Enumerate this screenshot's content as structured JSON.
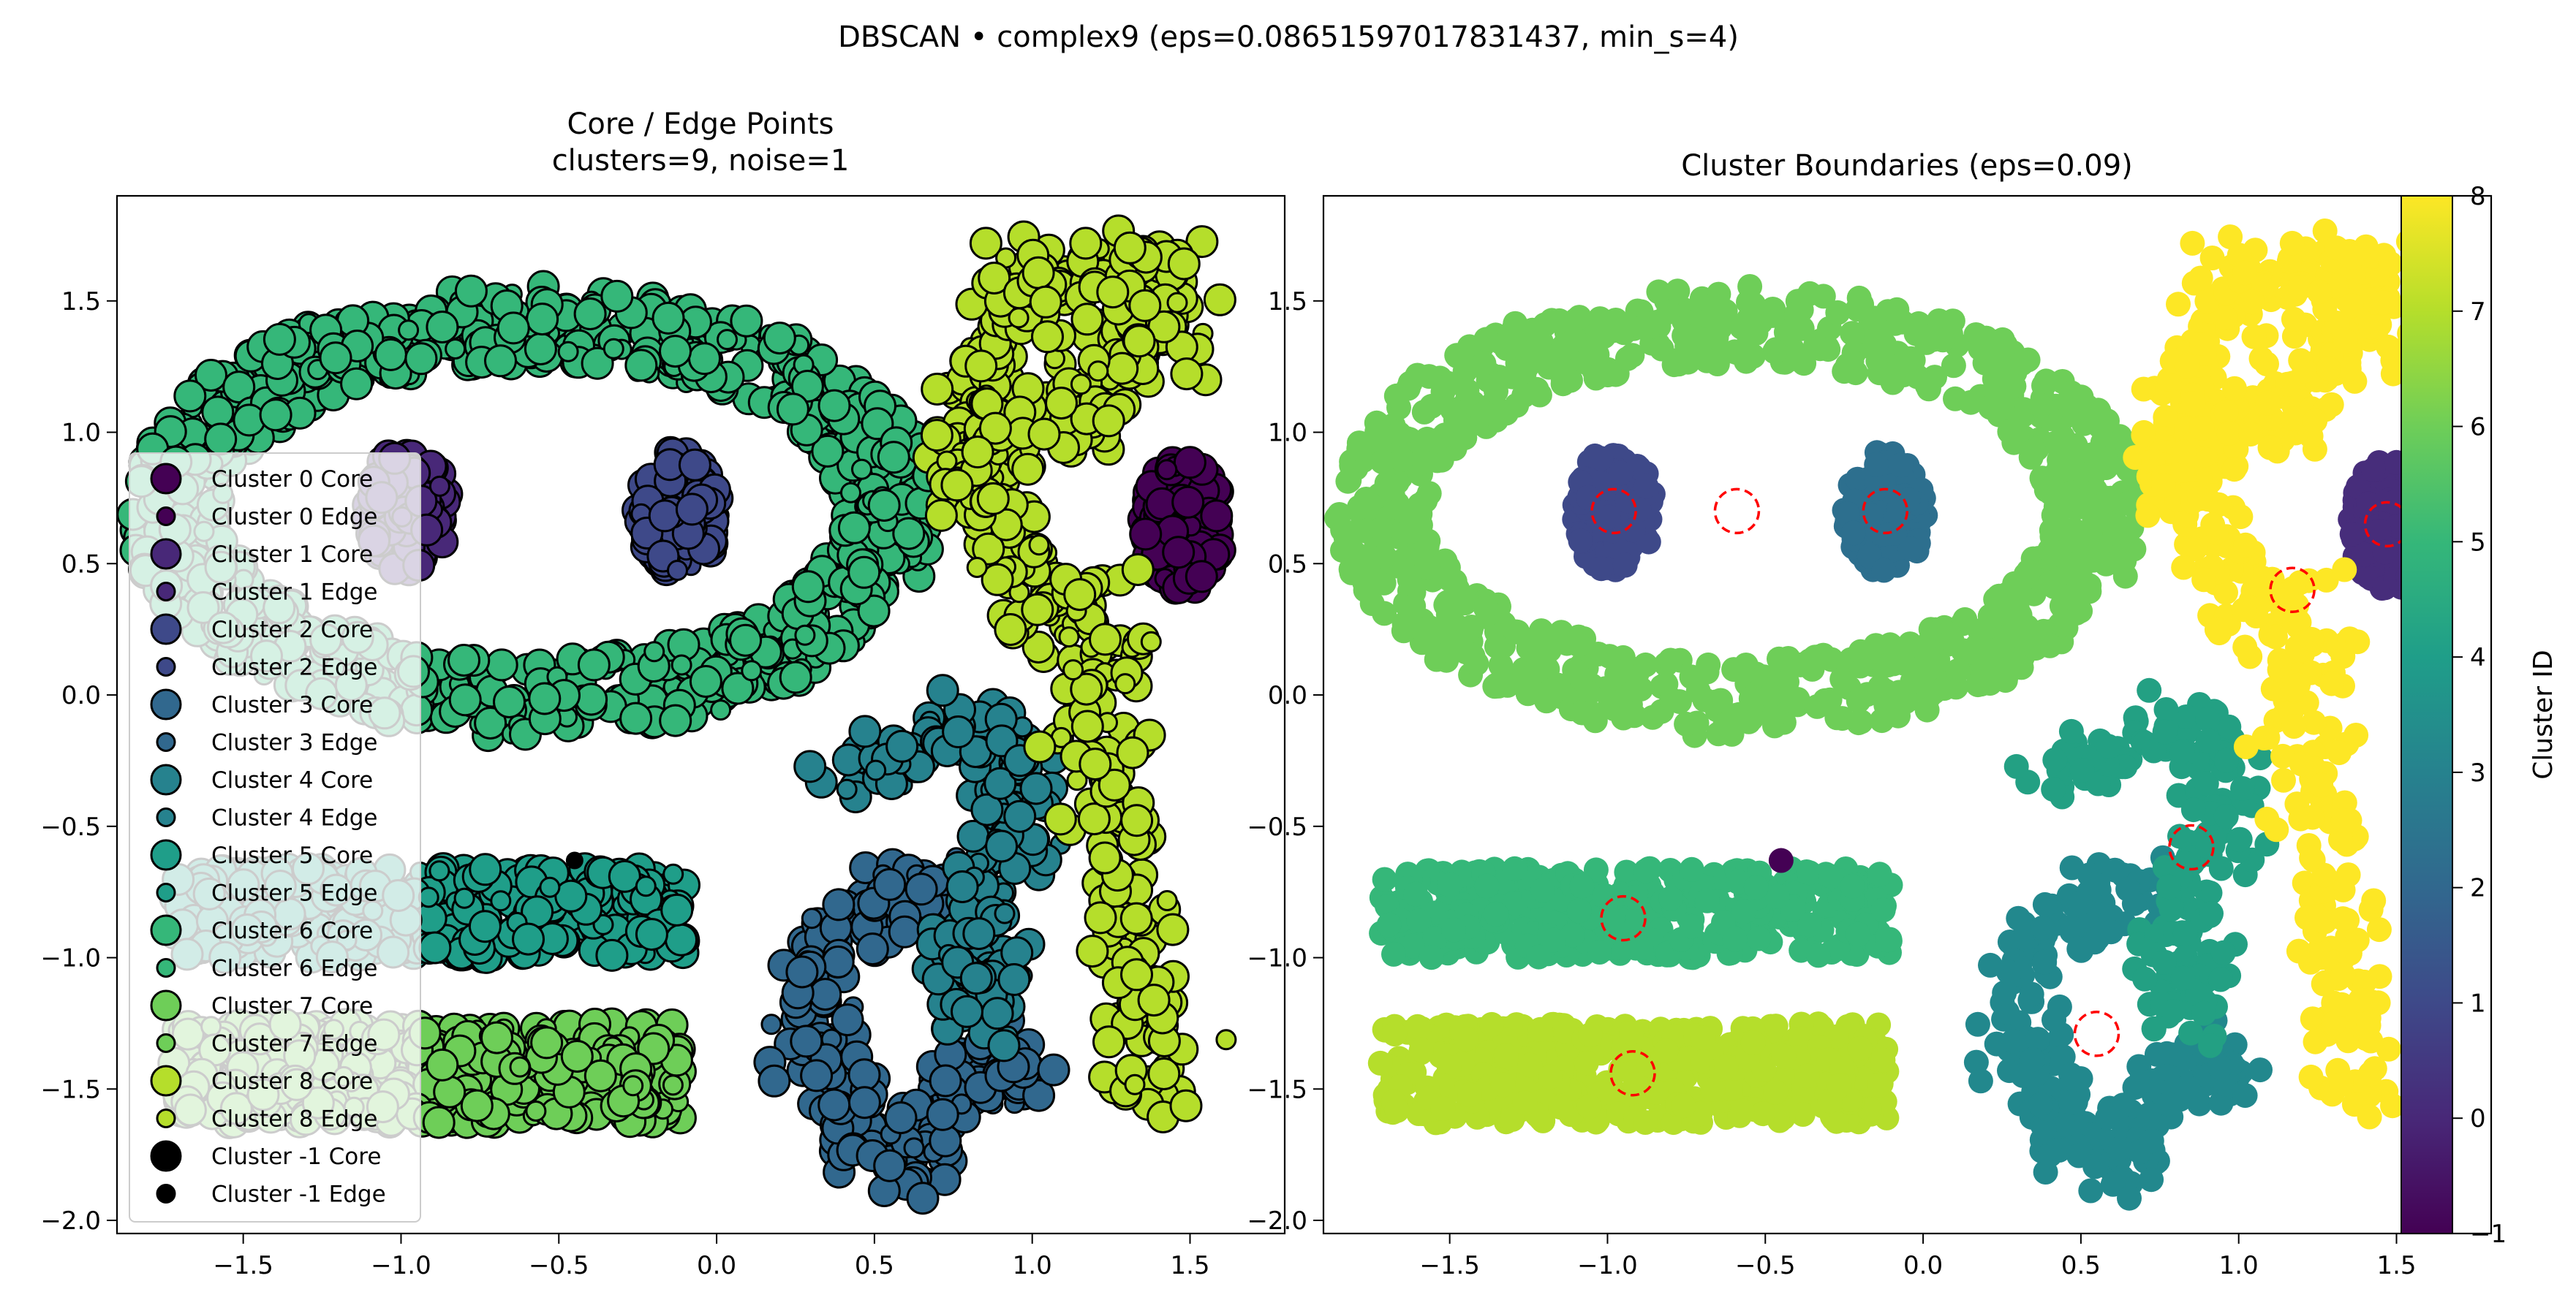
{
  "figure": {
    "suptitle": "DBSCAN • complex9  (eps=0.08651597017831437, min_s=4)"
  },
  "colors": {
    "viridis": [
      "#440154",
      "#482878",
      "#3e4989",
      "#31688e",
      "#26828e",
      "#1f9e89",
      "#35b779",
      "#6ece58",
      "#b5de2b",
      "#fde725"
    ],
    "noise": "#000000",
    "eps_circle": "#ff0000"
  },
  "chart_data": [
    {
      "type": "scatter",
      "title_line1": "Core / Edge Points",
      "title_line2": "clusters=9, noise=1",
      "xlim": [
        -1.9,
        1.8
      ],
      "ylim": [
        -2.05,
        1.9
      ],
      "xticks": [
        -1.5,
        -1.0,
        -0.5,
        0.0,
        0.5,
        1.0,
        1.5
      ],
      "xtick_labels": [
        "−1.5",
        "−1.0",
        "−0.5",
        "0.0",
        "0.5",
        "1.0",
        "1.5"
      ],
      "yticks": [
        -2.0,
        -1.5,
        -1.0,
        -0.5,
        0.0,
        0.5,
        1.0,
        1.5
      ],
      "ytick_labels": [
        "−2.0",
        "−1.5",
        "−1.0",
        "−0.5",
        "0.0",
        "0.5",
        "1.0",
        "1.5"
      ],
      "legend_position": "left",
      "legend": [
        {
          "label": "Cluster 0 Core",
          "cluster": 0,
          "kind": "core"
        },
        {
          "label": "Cluster 0 Edge",
          "cluster": 0,
          "kind": "edge"
        },
        {
          "label": "Cluster 1 Core",
          "cluster": 1,
          "kind": "core"
        },
        {
          "label": "Cluster 1 Edge",
          "cluster": 1,
          "kind": "edge"
        },
        {
          "label": "Cluster 2 Core",
          "cluster": 2,
          "kind": "core"
        },
        {
          "label": "Cluster 2 Edge",
          "cluster": 2,
          "kind": "edge"
        },
        {
          "label": "Cluster 3 Core",
          "cluster": 3,
          "kind": "core"
        },
        {
          "label": "Cluster 3 Edge",
          "cluster": 3,
          "kind": "edge"
        },
        {
          "label": "Cluster 4 Core",
          "cluster": 4,
          "kind": "core"
        },
        {
          "label": "Cluster 4 Edge",
          "cluster": 4,
          "kind": "edge"
        },
        {
          "label": "Cluster 5 Core",
          "cluster": 5,
          "kind": "core"
        },
        {
          "label": "Cluster 5 Edge",
          "cluster": 5,
          "kind": "edge"
        },
        {
          "label": "Cluster 6 Core",
          "cluster": 6,
          "kind": "core"
        },
        {
          "label": "Cluster 6 Edge",
          "cluster": 6,
          "kind": "edge"
        },
        {
          "label": "Cluster 7 Core",
          "cluster": 7,
          "kind": "core"
        },
        {
          "label": "Cluster 7 Edge",
          "cluster": 7,
          "kind": "edge"
        },
        {
          "label": "Cluster 8 Core",
          "cluster": 8,
          "kind": "core"
        },
        {
          "label": "Cluster 8 Edge",
          "cluster": 8,
          "kind": "edge"
        },
        {
          "label": "Cluster -1 Core",
          "cluster": -1,
          "kind": "core"
        },
        {
          "label": "Cluster -1 Edge",
          "cluster": -1,
          "kind": "edge"
        }
      ]
    },
    {
      "type": "scatter",
      "title": "Cluster Boundaries  (eps=0.09)",
      "xlim": [
        -1.9,
        1.8
      ],
      "ylim": [
        -2.05,
        1.9
      ],
      "xticks": [
        -1.5,
        -1.0,
        -0.5,
        0.0,
        0.5,
        1.0,
        1.5
      ],
      "xtick_labels": [
        "−1.5",
        "−1.0",
        "−0.5",
        "0.0",
        "0.5",
        "1.0",
        "1.5"
      ],
      "yticks": [
        -2.0,
        -1.5,
        -1.0,
        -0.5,
        0.0,
        0.5,
        1.0,
        1.5
      ],
      "ytick_labels": [
        "−2.0",
        "−1.5",
        "−1.0",
        "−0.5",
        "0.0",
        "0.5",
        "1.0",
        "1.5"
      ],
      "centroid_markers": [
        {
          "x": -0.98,
          "y": 0.7
        },
        {
          "x": -0.59,
          "y": 0.7
        },
        {
          "x": -0.12,
          "y": 0.7
        },
        {
          "x": 1.47,
          "y": 0.65
        },
        {
          "x": 1.17,
          "y": 0.4
        },
        {
          "x": 0.85,
          "y": -0.58
        },
        {
          "x": -0.95,
          "y": -0.85
        },
        {
          "x": 0.55,
          "y": -1.29
        },
        {
          "x": -0.92,
          "y": -1.44
        }
      ],
      "noise_point": {
        "x": -0.45,
        "y": -0.63
      }
    }
  ],
  "colorbar": {
    "label": "Cluster ID",
    "range": [
      -1,
      8
    ],
    "ticks": [
      -1,
      0,
      1,
      2,
      3,
      4,
      5,
      6,
      7,
      8
    ],
    "tick_labels": [
      "−1",
      "0",
      "1",
      "2",
      "3",
      "4",
      "5",
      "6",
      "7",
      "8"
    ]
  },
  "clusters": [
    {
      "id": 0,
      "color_left": "#440154",
      "color_right": "#472d7b",
      "shape": "blob",
      "cx": 1.48,
      "cy": 0.65,
      "rx": 0.13,
      "ry": 0.25,
      "n": 130
    },
    {
      "id": 1,
      "color_left": "#482878",
      "color_right": "#3e4989",
      "shape": "blob",
      "cx": -0.98,
      "cy": 0.7,
      "rx": 0.13,
      "ry": 0.24,
      "n": 130
    },
    {
      "id": 2,
      "color_left": "#3e4989",
      "color_right": "#2d6f8e",
      "shape": "blob",
      "cx": -0.12,
      "cy": 0.7,
      "rx": 0.13,
      "ry": 0.24,
      "n": 130
    },
    {
      "id": 3,
      "color_left": "#31688e",
      "color_right": "#22888d",
      "shape": "hook",
      "n": 260
    },
    {
      "id": 4,
      "color_left": "#26828e",
      "color_right": "#23a083",
      "shape": "arc",
      "n": 200
    },
    {
      "id": 5,
      "color_left": "#1f9e89",
      "color_right": "#35b779",
      "shape": "rect",
      "x0": -1.72,
      "x1": -0.1,
      "y0": -1.0,
      "y1": -0.66,
      "n": 420
    },
    {
      "id": 6,
      "color_left": "#35b779",
      "color_right": "#6ece58",
      "shape": "ring",
      "cx": -0.58,
      "cy": 0.7,
      "rx": 1.13,
      "ry": 0.71,
      "w": 0.15,
      "n": 900
    },
    {
      "id": 7,
      "color_left": "#6ece58",
      "color_right": "#b5de2b",
      "shape": "rect",
      "x0": -1.72,
      "x1": -0.1,
      "y0": -1.63,
      "y1": -1.25,
      "n": 480
    },
    {
      "id": 8,
      "color_left": "#b5de2b",
      "color_right": "#fde725",
      "shape": "hook9",
      "n": 560
    }
  ]
}
